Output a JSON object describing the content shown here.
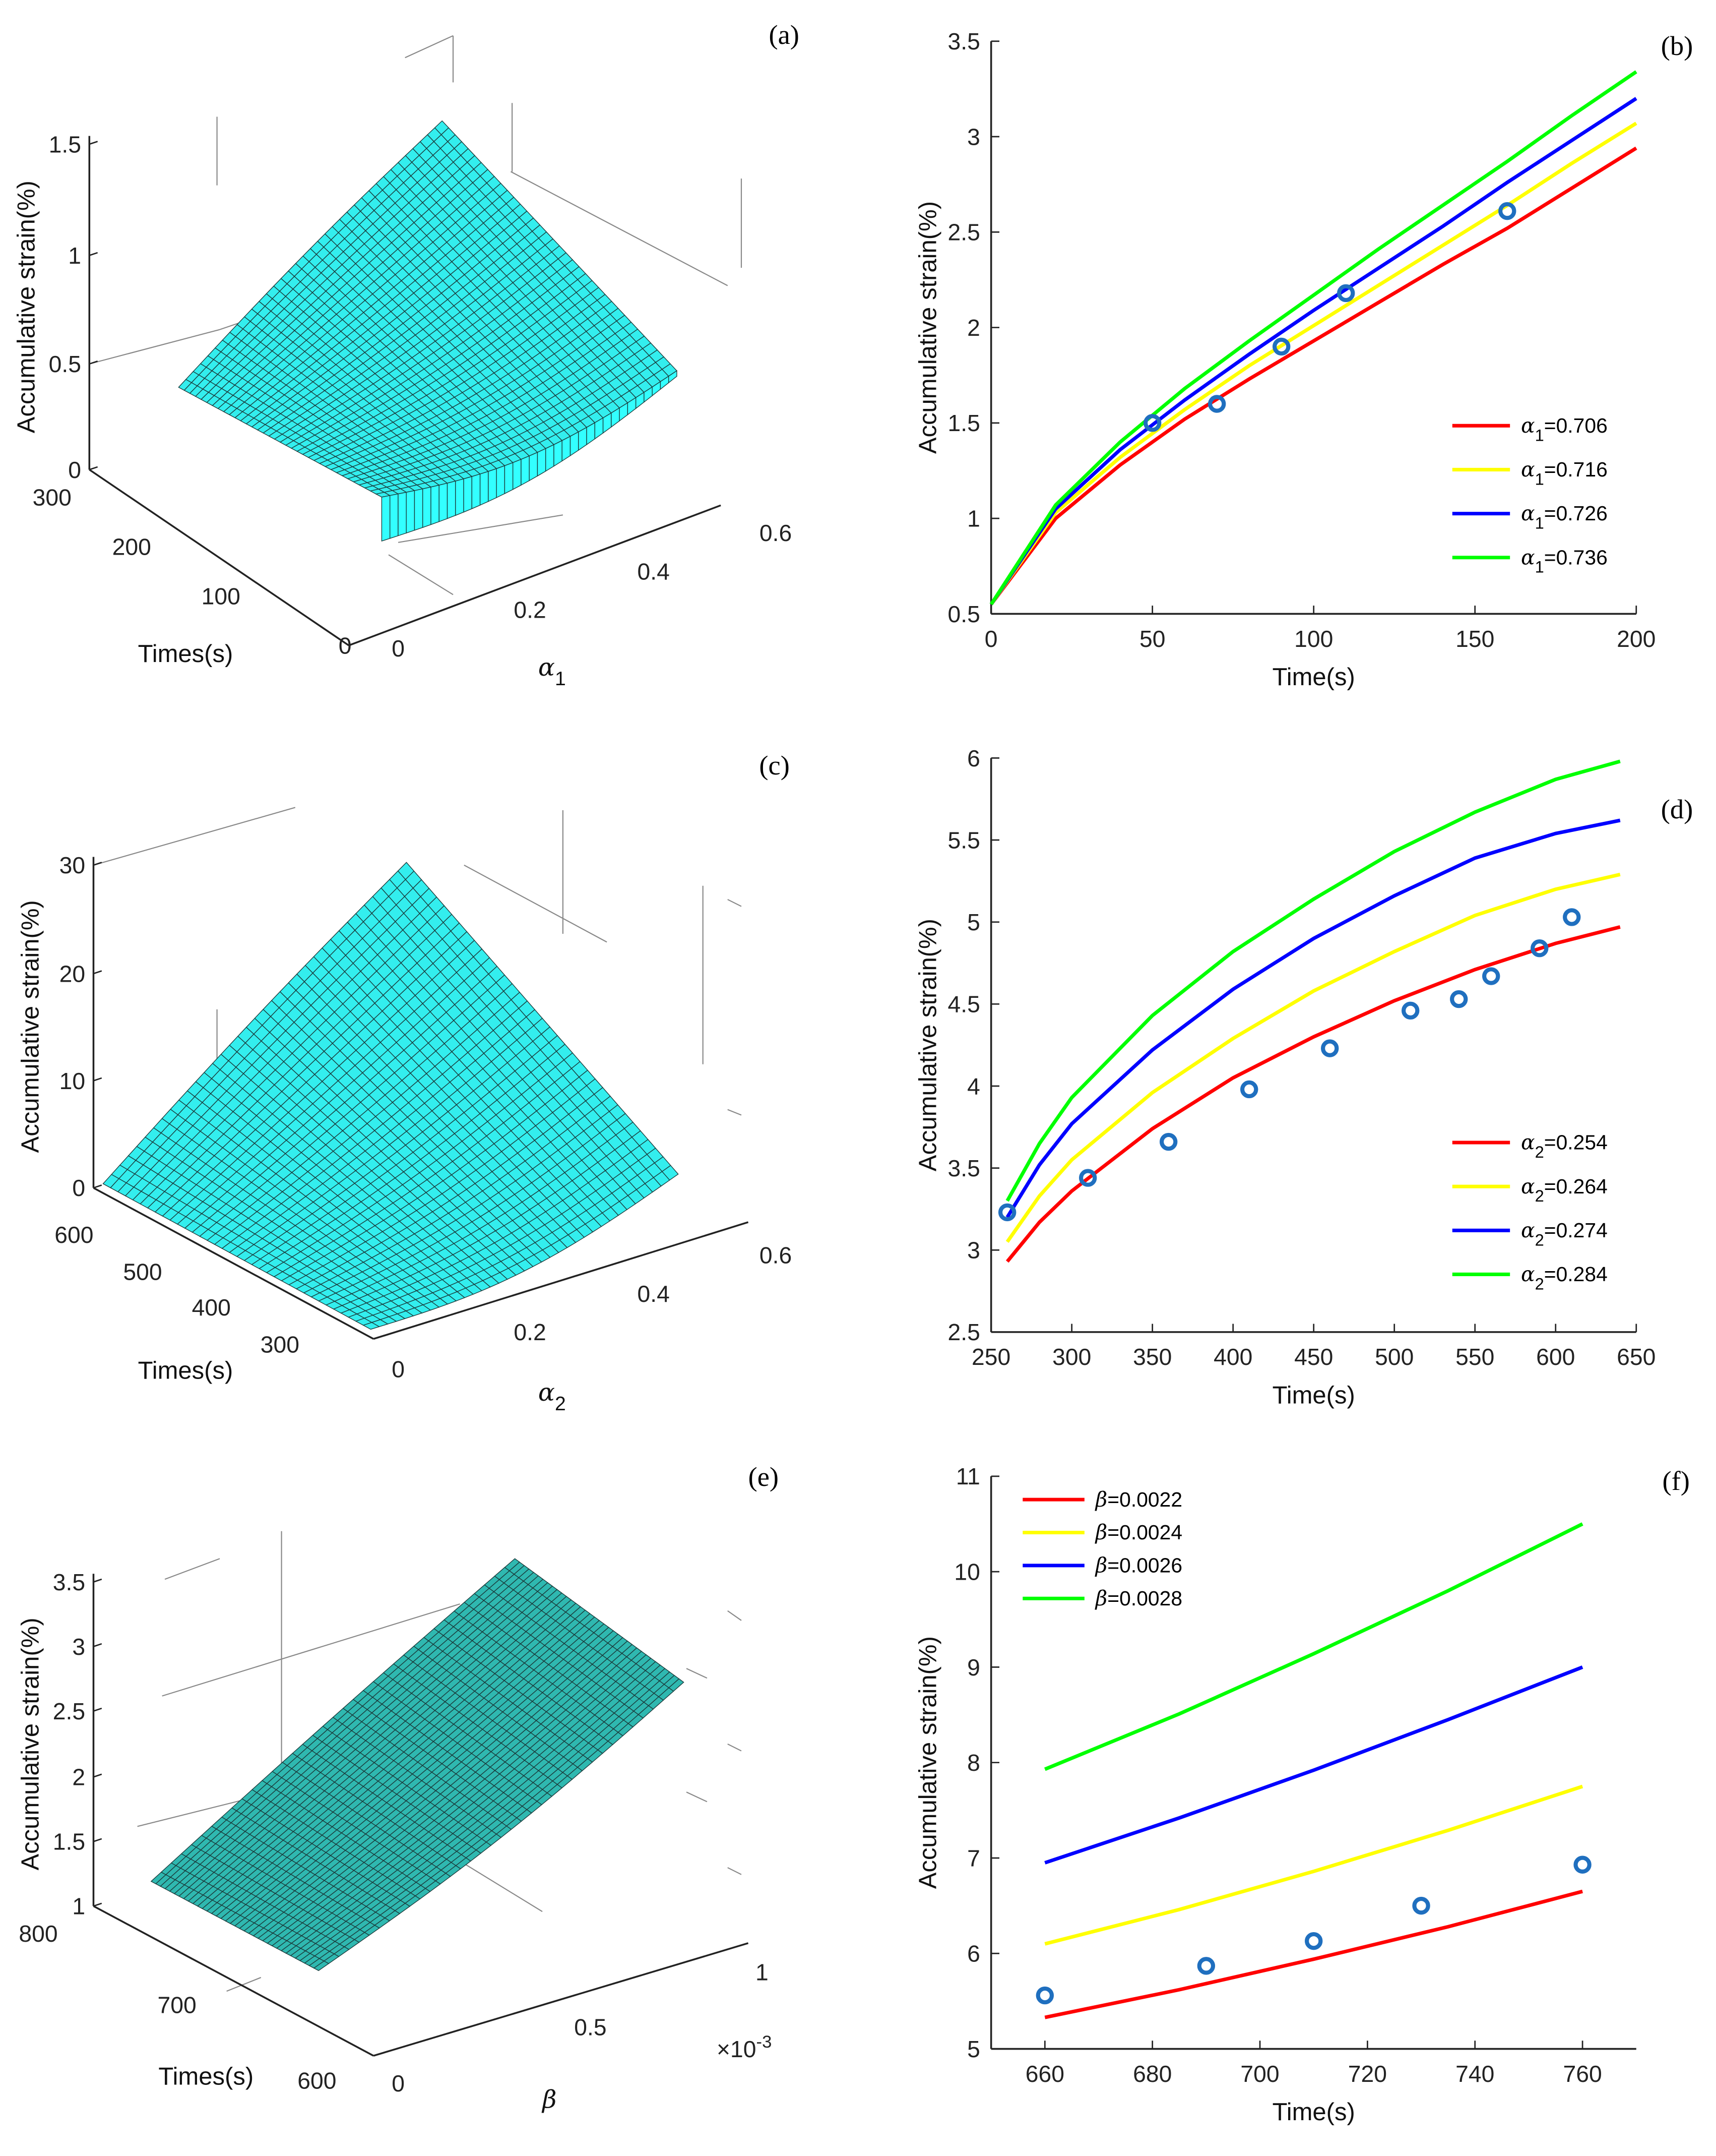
{
  "panel_labels": [
    "(a)",
    "(b)",
    "(c)",
    "(d)",
    "(e)",
    "(f)"
  ],
  "colors": {
    "red": "#ff0000",
    "yellow": "#ffff00",
    "blue": "#0000ff",
    "green": "#00ff00",
    "marker": "#1f6fbf",
    "surface": "#33ffff",
    "surface_dark": "#2fb8b8"
  },
  "chart_data": [
    {
      "id": "a",
      "type": "surface3d",
      "zlabel": "Accumulative strain(%)",
      "xlabel": "Times(s)",
      "ylabel_symbol": "α",
      "ylabel_sub": "1",
      "zticks": [
        "0",
        "0.5",
        "1",
        "1.5"
      ],
      "xticks": [
        "300",
        "200",
        "100",
        "0"
      ],
      "yticks": [
        "0",
        "0.2",
        "0.4",
        "0.6"
      ],
      "zlim": [
        0,
        1.5
      ],
      "xlim": [
        0,
        300
      ],
      "ylim": [
        0,
        0.6
      ]
    },
    {
      "id": "b",
      "type": "line",
      "xlabel": "Time(s)",
      "ylabel": "Accumulative strain(%)",
      "xlim": [
        0,
        200
      ],
      "ylim": [
        0.5,
        3.5
      ],
      "xticks": [
        0,
        50,
        100,
        150,
        200
      ],
      "yticks": [
        0.5,
        1,
        1.5,
        2,
        2.5,
        3,
        3.5
      ],
      "x": [
        0,
        20,
        40,
        60,
        80,
        100,
        120,
        140,
        160,
        180,
        200
      ],
      "series": [
        {
          "symbol": "α",
          "sub": "1",
          "value": "=0.706",
          "color": "#ff0000",
          "values": [
            0.55,
            1.0,
            1.28,
            1.52,
            1.73,
            1.93,
            2.13,
            2.33,
            2.52,
            2.73,
            2.94
          ]
        },
        {
          "symbol": "α",
          "sub": "1",
          "value": "=0.716",
          "color": "#ffff00",
          "values": [
            0.55,
            1.03,
            1.32,
            1.57,
            1.8,
            2.01,
            2.22,
            2.43,
            2.64,
            2.86,
            3.07
          ]
        },
        {
          "symbol": "α",
          "sub": "1",
          "value": "=0.726",
          "color": "#0000ff",
          "values": [
            0.55,
            1.05,
            1.36,
            1.62,
            1.86,
            2.09,
            2.31,
            2.53,
            2.76,
            2.98,
            3.2
          ]
        },
        {
          "symbol": "α",
          "sub": "1",
          "value": "=0.736",
          "color": "#00ff00",
          "values": [
            0.55,
            1.07,
            1.4,
            1.68,
            1.93,
            2.17,
            2.41,
            2.64,
            2.87,
            3.11,
            3.34
          ]
        }
      ],
      "points": [
        [
          50,
          1.5
        ],
        [
          70,
          1.6
        ],
        [
          90,
          1.9
        ],
        [
          110,
          2.18
        ],
        [
          160,
          2.61
        ]
      ],
      "legend": "right-middle"
    },
    {
      "id": "c",
      "type": "surface3d",
      "zlabel": "Accumulative strain(%)",
      "xlabel": "Times(s)",
      "ylabel_symbol": "α",
      "ylabel_sub": "2",
      "zticks": [
        "0",
        "10",
        "20",
        "30"
      ],
      "xticks": [
        "600",
        "500",
        "400",
        "300"
      ],
      "yticks": [
        "0",
        "0.2",
        "0.4",
        "0.6"
      ],
      "zlim": [
        0,
        30
      ],
      "xlim": [
        250,
        650
      ],
      "ylim": [
        0,
        0.6
      ]
    },
    {
      "id": "d",
      "type": "line",
      "xlabel": "Time(s)",
      "ylabel": "Accumulative strain(%)",
      "xlim": [
        250,
        650
      ],
      "ylim": [
        2.5,
        6
      ],
      "xticks": [
        250,
        300,
        350,
        400,
        450,
        500,
        550,
        600,
        650
      ],
      "yticks": [
        2.5,
        3,
        3.5,
        4,
        4.5,
        5,
        5.5,
        6
      ],
      "x": [
        260,
        280,
        300,
        350,
        400,
        450,
        500,
        550,
        600,
        640
      ],
      "series": [
        {
          "symbol": "α",
          "sub": "2",
          "value": "=0.254",
          "color": "#ff0000",
          "values": [
            2.93,
            3.17,
            3.36,
            3.74,
            4.05,
            4.3,
            4.52,
            4.71,
            4.87,
            4.97
          ]
        },
        {
          "symbol": "α",
          "sub": "2",
          "value": "=0.264",
          "color": "#ffff00",
          "values": [
            3.05,
            3.33,
            3.55,
            3.96,
            4.29,
            4.58,
            4.82,
            5.04,
            5.2,
            5.29
          ]
        },
        {
          "symbol": "α",
          "sub": "2",
          "value": "=0.274",
          "color": "#0000ff",
          "values": [
            3.2,
            3.52,
            3.77,
            4.22,
            4.59,
            4.9,
            5.16,
            5.39,
            5.54,
            5.62
          ]
        },
        {
          "symbol": "α",
          "sub": "2",
          "value": "=0.284",
          "color": "#00ff00",
          "values": [
            3.3,
            3.65,
            3.93,
            4.43,
            4.82,
            5.14,
            5.43,
            5.67,
            5.87,
            5.98
          ]
        }
      ],
      "points": [
        [
          260,
          3.23
        ],
        [
          310,
          3.44
        ],
        [
          360,
          3.66
        ],
        [
          410,
          3.98
        ],
        [
          460,
          4.23
        ],
        [
          510,
          4.46
        ],
        [
          540,
          4.53
        ],
        [
          560,
          4.67
        ],
        [
          590,
          4.84
        ],
        [
          610,
          5.03
        ]
      ],
      "legend": "right-lower"
    },
    {
      "id": "e",
      "type": "surface3d",
      "zlabel": "Accumulative strain(%)",
      "xlabel": "Times(s)",
      "ylabel_symbol": "β",
      "ylabel_sub": "",
      "exponent": "×10",
      "exponent_power": "-3",
      "zticks": [
        "1",
        "1.5",
        "2",
        "2.5",
        "3",
        "3.5"
      ],
      "xticks": [
        "800",
        "700",
        "600"
      ],
      "yticks": [
        "0",
        "0.5",
        "1"
      ],
      "zlim": [
        1,
        3.5
      ],
      "xlim": [
        600,
        800
      ],
      "ylim": [
        0,
        0.001
      ]
    },
    {
      "id": "f",
      "type": "line",
      "xlabel": "Time(s)",
      "ylabel": "Accumulative strain(%)",
      "xlim": [
        650,
        770
      ],
      "ylim": [
        5,
        11
      ],
      "xticks": [
        660,
        680,
        700,
        720,
        740,
        760
      ],
      "yticks": [
        5,
        6,
        7,
        8,
        9,
        10,
        11
      ],
      "x": [
        660,
        685,
        710,
        735,
        760
      ],
      "series": [
        {
          "symbol": "β",
          "sub": "",
          "value": "=0.0022",
          "color": "#ff0000",
          "values": [
            5.33,
            5.62,
            5.94,
            6.28,
            6.65
          ]
        },
        {
          "symbol": "β",
          "sub": "",
          "value": "=0.0024",
          "color": "#ffff00",
          "values": [
            6.1,
            6.46,
            6.86,
            7.29,
            7.75
          ]
        },
        {
          "symbol": "β",
          "sub": "",
          "value": "=0.0026",
          "color": "#0000ff",
          "values": [
            6.95,
            7.42,
            7.92,
            8.45,
            9.0
          ]
        },
        {
          "symbol": "β",
          "sub": "",
          "value": "=0.0028",
          "color": "#00ff00",
          "values": [
            7.93,
            8.51,
            9.14,
            9.8,
            10.5
          ]
        }
      ],
      "points": [
        [
          660,
          5.56
        ],
        [
          690,
          5.87
        ],
        [
          710,
          6.13
        ],
        [
          730,
          6.5
        ],
        [
          760,
          6.93
        ]
      ],
      "legend": "top-left"
    }
  ]
}
